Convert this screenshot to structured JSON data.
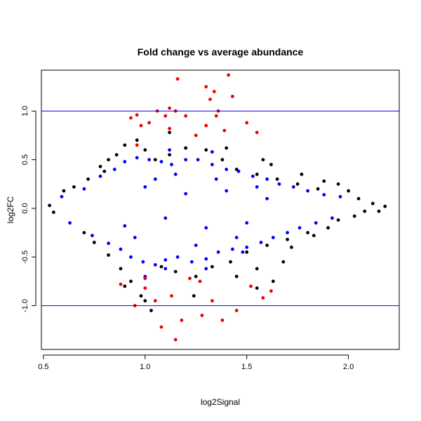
{
  "chart_data": {
    "type": "scatter",
    "title": "Fold change vs average abundance",
    "xlabel": "log2Signal",
    "ylabel": "log2FC",
    "xlim": [
      0.49,
      2.25
    ],
    "ylim": [
      -1.45,
      1.42
    ],
    "x_ticks": [
      0.5,
      1.0,
      1.5,
      2.0
    ],
    "x_tick_labels": [
      "0.5",
      "1.0",
      "1.5",
      "2.0"
    ],
    "y_ticks": [
      -1.0,
      -0.5,
      0.0,
      0.5,
      1.0
    ],
    "y_tick_labels": [
      "-1.0",
      "-0.5",
      "0.0",
      "0.5",
      "1.0"
    ],
    "reference_lines": [
      {
        "y": 1.0,
        "color": "#0000ff"
      },
      {
        "y": -1.0,
        "color": "#0000ff"
      }
    ],
    "grid": false,
    "point_colors": {
      "base": "#000000",
      "significant": "#0000ff",
      "large_fc": "#ee0000"
    },
    "series": [
      {
        "color": "#000000",
        "points": [
          [
            0.53,
            0.03
          ],
          [
            0.55,
            -0.04
          ],
          [
            0.6,
            0.18
          ],
          [
            0.65,
            0.22
          ],
          [
            0.7,
            -0.25
          ],
          [
            0.72,
            0.3
          ],
          [
            0.75,
            -0.35
          ],
          [
            0.8,
            0.38
          ],
          [
            0.82,
            -0.48
          ],
          [
            0.86,
            0.55
          ],
          [
            0.88,
            -0.62
          ],
          [
            0.9,
            0.65
          ],
          [
            0.93,
            -0.75
          ],
          [
            0.96,
            0.7
          ],
          [
            0.98,
            -0.9
          ],
          [
            1.0,
            0.6
          ],
          [
            1.03,
            -1.05
          ],
          [
            1.05,
            0.5
          ],
          [
            1.08,
            -0.6
          ],
          [
            1.12,
            0.55
          ],
          [
            1.15,
            -0.65
          ],
          [
            1.2,
            0.62
          ],
          [
            1.25,
            -0.7
          ],
          [
            1.3,
            0.6
          ],
          [
            1.33,
            -0.6
          ],
          [
            1.38,
            0.5
          ],
          [
            1.42,
            -0.55
          ],
          [
            1.45,
            0.4
          ],
          [
            1.5,
            -0.45
          ],
          [
            1.55,
            0.35
          ],
          [
            1.6,
            -0.38
          ],
          [
            1.65,
            0.3
          ],
          [
            1.7,
            -0.32
          ],
          [
            1.75,
            0.25
          ],
          [
            1.8,
            -0.25
          ],
          [
            1.85,
            0.2
          ],
          [
            1.9,
            -0.2
          ],
          [
            1.95,
            0.25
          ],
          [
            2.0,
            0.18
          ],
          [
            2.05,
            0.1
          ],
          [
            2.08,
            -0.03
          ],
          [
            2.12,
            0.05
          ],
          [
            2.15,
            -0.03
          ],
          [
            2.18,
            0.02
          ],
          [
            1.77,
            0.35
          ],
          [
            1.72,
            -0.4
          ],
          [
            1.62,
            0.45
          ],
          [
            1.68,
            -0.55
          ],
          [
            1.55,
            -0.62
          ],
          [
            1.58,
            0.5
          ],
          [
            1.83,
            -0.28
          ],
          [
            1.88,
            0.28
          ],
          [
            1.95,
            -0.12
          ],
          [
            2.03,
            -0.08
          ],
          [
            1.4,
            0.62
          ],
          [
            1.12,
            0.78
          ],
          [
            0.78,
            0.43
          ],
          [
            0.82,
            0.5
          ],
          [
            0.9,
            -0.8
          ],
          [
            1.0,
            -0.95
          ],
          [
            1.45,
            -0.7
          ],
          [
            1.55,
            -0.82
          ],
          [
            1.63,
            -0.75
          ],
          [
            1.24,
            -0.9
          ]
        ]
      },
      {
        "color": "#0000ff",
        "points": [
          [
            0.59,
            0.12
          ],
          [
            0.63,
            -0.15
          ],
          [
            0.7,
            0.2
          ],
          [
            0.74,
            -0.28
          ],
          [
            0.78,
            0.33
          ],
          [
            0.82,
            -0.36
          ],
          [
            0.85,
            0.4
          ],
          [
            0.88,
            -0.42
          ],
          [
            0.9,
            0.48
          ],
          [
            0.93,
            -0.5
          ],
          [
            0.96,
            0.52
          ],
          [
            0.99,
            -0.55
          ],
          [
            1.02,
            0.5
          ],
          [
            1.05,
            -0.58
          ],
          [
            1.08,
            0.48
          ],
          [
            1.1,
            -0.53
          ],
          [
            1.13,
            0.45
          ],
          [
            1.16,
            -0.5
          ],
          [
            1.2,
            0.5
          ],
          [
            1.23,
            -0.55
          ],
          [
            1.26,
            0.5
          ],
          [
            1.3,
            -0.52
          ],
          [
            1.33,
            0.45
          ],
          [
            1.36,
            -0.45
          ],
          [
            1.4,
            0.4
          ],
          [
            1.43,
            -0.42
          ],
          [
            1.46,
            0.38
          ],
          [
            1.5,
            -0.4
          ],
          [
            1.53,
            0.33
          ],
          [
            1.57,
            -0.35
          ],
          [
            1.6,
            0.3
          ],
          [
            1.63,
            -0.3
          ],
          [
            1.66,
            0.25
          ],
          [
            1.7,
            -0.25
          ],
          [
            1.73,
            0.22
          ],
          [
            1.76,
            -0.2
          ],
          [
            1.8,
            0.18
          ],
          [
            1.84,
            -0.15
          ],
          [
            1.88,
            0.14
          ],
          [
            1.92,
            -0.1
          ],
          [
            1.96,
            0.12
          ],
          [
            1.1,
            -0.1
          ],
          [
            1.2,
            0.15
          ],
          [
            1.3,
            -0.2
          ],
          [
            1.4,
            0.18
          ],
          [
            1.0,
            0.22
          ],
          [
            0.9,
            -0.18
          ],
          [
            1.5,
            -0.15
          ],
          [
            1.6,
            0.1
          ],
          [
            1.25,
            -0.38
          ],
          [
            1.15,
            0.35
          ],
          [
            1.35,
            0.3
          ],
          [
            0.95,
            -0.3
          ],
          [
            1.05,
            0.3
          ],
          [
            1.45,
            -0.3
          ],
          [
            1.55,
            0.22
          ],
          [
            1.0,
            -0.7
          ],
          [
            1.1,
            -0.62
          ],
          [
            1.3,
            -0.62
          ],
          [
            1.48,
            -0.45
          ],
          [
            1.12,
            0.6
          ],
          [
            1.33,
            0.58
          ]
        ]
      },
      {
        "color": "#ee0000",
        "points": [
          [
            0.88,
            -0.78
          ],
          [
            0.93,
            0.93
          ],
          [
            0.95,
            -1.0
          ],
          [
            0.96,
            0.96
          ],
          [
            0.98,
            0.85
          ],
          [
            1.0,
            -0.72
          ],
          [
            1.02,
            0.88
          ],
          [
            1.05,
            -0.95
          ],
          [
            1.06,
            1.0
          ],
          [
            1.08,
            -1.22
          ],
          [
            1.1,
            0.95
          ],
          [
            1.12,
            1.03
          ],
          [
            1.13,
            -0.9
          ],
          [
            1.15,
            1.0
          ],
          [
            1.16,
            1.33
          ],
          [
            1.18,
            -1.15
          ],
          [
            1.2,
            0.95
          ],
          [
            1.22,
            -0.72
          ],
          [
            1.25,
            0.75
          ],
          [
            1.28,
            -1.1
          ],
          [
            1.3,
            0.85
          ],
          [
            1.32,
            1.12
          ],
          [
            1.33,
            -0.95
          ],
          [
            1.34,
            1.2
          ],
          [
            1.36,
            1.0
          ],
          [
            1.38,
            -1.15
          ],
          [
            1.39,
            0.8
          ],
          [
            1.41,
            1.37
          ],
          [
            1.43,
            1.15
          ],
          [
            1.45,
            -1.05
          ],
          [
            1.5,
            0.88
          ],
          [
            1.52,
            -0.8
          ],
          [
            1.55,
            0.78
          ],
          [
            1.58,
            -0.92
          ],
          [
            1.62,
            -0.85
          ],
          [
            1.35,
            0.95
          ],
          [
            1.15,
            -1.35
          ],
          [
            1.0,
            -0.82
          ],
          [
            1.12,
            0.82
          ],
          [
            1.27,
            -0.75
          ],
          [
            0.96,
            0.65
          ],
          [
            1.3,
            1.25
          ]
        ]
      }
    ]
  }
}
